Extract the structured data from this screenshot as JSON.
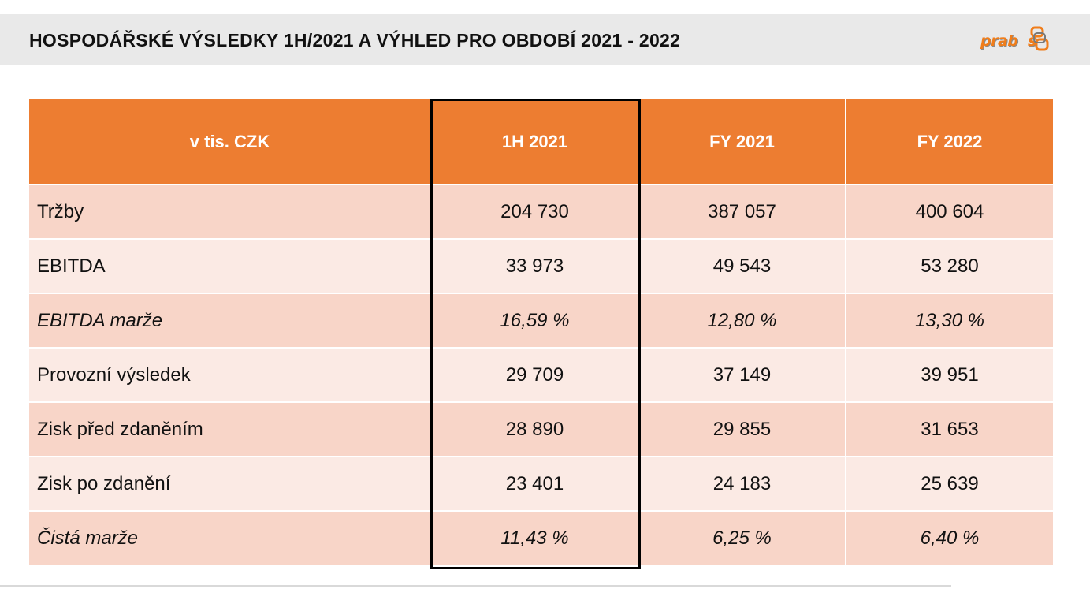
{
  "header": {
    "title": "HOSPODÁŘSKÉ VÝSLEDKY 1H/2021 A VÝHLED PRO OBDOBÍ 2021 - 2022",
    "logo_text": "prabos",
    "logo_text_before_mark": "prab",
    "logo_text_after_mark": "s"
  },
  "colors": {
    "accent": "#ed7d31",
    "row_dark": "#f8d5c8",
    "row_light": "#fbeae4",
    "title_bar": "#e9e9e9"
  },
  "table": {
    "columns": [
      "v tis. CZK",
      "1H 2021",
      "FY 2021",
      "FY 2022"
    ],
    "rows": [
      {
        "label": "Tržby",
        "values": [
          "204 730",
          "387 057",
          "400 604"
        ],
        "italic": false
      },
      {
        "label": "EBITDA",
        "values": [
          "33 973",
          "49 543",
          "53 280"
        ],
        "italic": false
      },
      {
        "label": "EBITDA marže",
        "values": [
          "16,59 %",
          "12,80 %",
          "13,30 %"
        ],
        "italic": true
      },
      {
        "label": "Provozní výsledek",
        "values": [
          "29 709",
          "37 149",
          "39 951"
        ],
        "italic": false
      },
      {
        "label": "Zisk před zdaněním",
        "values": [
          "28 890",
          "29 855",
          "31 653"
        ],
        "italic": false
      },
      {
        "label": "Zisk po zdanění",
        "values": [
          "23 401",
          "24 183",
          "25 639"
        ],
        "italic": false
      },
      {
        "label": "Čistá marže",
        "values": [
          "11,43 %",
          "6,25 %",
          "6,40 %"
        ],
        "italic": true
      }
    ]
  }
}
